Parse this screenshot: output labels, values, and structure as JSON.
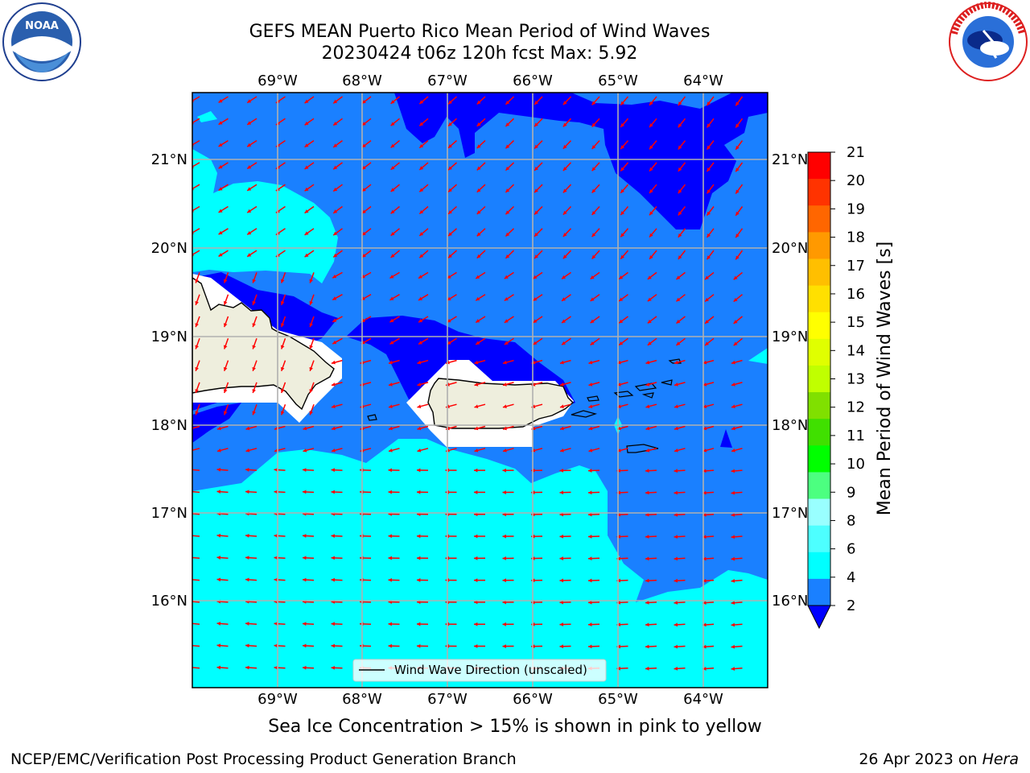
{
  "title": {
    "line1": "GEFS MEAN Puerto Rico Mean Period of Wind Waves",
    "line2": "20230424 t06z 120h fcst   Max: 5.92"
  },
  "map": {
    "lon_labels": [
      "69°W",
      "68°W",
      "67°W",
      "66°W",
      "65°W",
      "64°W"
    ],
    "lat_labels": [
      "21°N",
      "20°N",
      "19°N",
      "18°N",
      "17°N",
      "16°N"
    ],
    "legend_label": "Wind Wave Direction (unscaled)",
    "colors": {
      "land": "#eeeedd",
      "band_2_4": "#1a80ff",
      "band_0_2": "#0000ff",
      "band_4_6": "#00ffff",
      "arrow": "#ff0000",
      "grid": "#b0b0b0"
    }
  },
  "colorbar": {
    "label": "Mean Period of Wind Waves [s]",
    "ticks": [
      "2",
      "4",
      "6",
      "8",
      "9",
      "10",
      "11",
      "12",
      "13",
      "14",
      "15",
      "16",
      "17",
      "18",
      "19",
      "20",
      "21"
    ],
    "colors": [
      "#1a80ff",
      "#00ffff",
      "#4dffff",
      "#99ffff",
      "#4cff80",
      "#00ff00",
      "#40e000",
      "#80e000",
      "#c0ff00",
      "#e0ff00",
      "#ffff00",
      "#ffe000",
      "#ffbf00",
      "#ff9900",
      "#ff6600",
      "#ff3300",
      "#ff0000"
    ],
    "extend_color": "#0000ff"
  },
  "caption": "Sea Ice Concentration > 15% is shown in pink to yellow",
  "footer": {
    "credit": "NCEP/EMC/Verification Post Processing Product Generation Branch",
    "date_prefix": "26 Apr 2023 on ",
    "date_host": "Hera"
  },
  "logos": {
    "left": "noaa-logo",
    "right_text": "NATIONAL WEATHER SERVICE"
  }
}
